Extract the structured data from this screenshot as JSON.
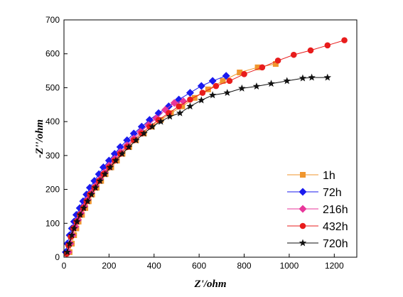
{
  "chart_data": {
    "type": "scatter",
    "title": "",
    "xlabel": "Z'/ohm",
    "ylabel": "-Z''/ohm",
    "xlim": [
      0,
      1300
    ],
    "ylim": [
      0,
      700
    ],
    "xticks": [
      "0",
      "200",
      "400",
      "600",
      "800",
      "1000",
      "1200"
    ],
    "yticks": [
      "0",
      "100",
      "200",
      "300",
      "400",
      "500",
      "600",
      "700"
    ],
    "grid": false,
    "legend": "lower-right",
    "series": [
      {
        "name": "1h",
        "color": "#f0962e",
        "marker": "square",
        "points": [
          [
            25,
            15
          ],
          [
            35,
            40
          ],
          [
            45,
            65
          ],
          [
            55,
            85
          ],
          [
            65,
            105
          ],
          [
            80,
            125
          ],
          [
            95,
            145
          ],
          [
            110,
            165
          ],
          [
            125,
            185
          ],
          [
            145,
            205
          ],
          [
            165,
            225
          ],
          [
            185,
            245
          ],
          [
            210,
            265
          ],
          [
            235,
            285
          ],
          [
            260,
            305
          ],
          [
            290,
            325
          ],
          [
            320,
            345
          ],
          [
            355,
            365
          ],
          [
            390,
            385
          ],
          [
            430,
            405
          ],
          [
            475,
            425
          ],
          [
            525,
            445
          ],
          [
            580,
            470
          ],
          [
            640,
            495
          ],
          [
            705,
            520
          ],
          [
            780,
            545
          ],
          [
            860,
            560
          ],
          [
            940,
            570
          ]
        ]
      },
      {
        "name": "72h",
        "color": "#1a1aee",
        "marker": "diamond",
        "points": [
          [
            8,
            15
          ],
          [
            15,
            40
          ],
          [
            25,
            65
          ],
          [
            35,
            85
          ],
          [
            45,
            105
          ],
          [
            55,
            125
          ],
          [
            70,
            145
          ],
          [
            85,
            165
          ],
          [
            100,
            185
          ],
          [
            115,
            205
          ],
          [
            135,
            225
          ],
          [
            155,
            245
          ],
          [
            175,
            265
          ],
          [
            200,
            285
          ],
          [
            225,
            305
          ],
          [
            250,
            325
          ],
          [
            280,
            345
          ],
          [
            310,
            365
          ],
          [
            345,
            385
          ],
          [
            380,
            405
          ],
          [
            420,
            425
          ],
          [
            465,
            445
          ],
          [
            510,
            465
          ],
          [
            560,
            485
          ],
          [
            610,
            505
          ],
          [
            660,
            520
          ],
          [
            720,
            535
          ]
        ]
      },
      {
        "name": "216h",
        "color": "#e8369a",
        "marker": "diamond",
        "points": [
          [
            20,
            15
          ],
          [
            28,
            40
          ],
          [
            38,
            65
          ],
          [
            50,
            90
          ],
          [
            62,
            110
          ],
          [
            75,
            130
          ],
          [
            90,
            150
          ],
          [
            105,
            170
          ],
          [
            120,
            190
          ],
          [
            140,
            210
          ],
          [
            160,
            230
          ],
          [
            180,
            250
          ],
          [
            200,
            270
          ],
          [
            225,
            290
          ],
          [
            250,
            310
          ],
          [
            280,
            330
          ],
          [
            310,
            350
          ],
          [
            340,
            370
          ],
          [
            375,
            390
          ],
          [
            410,
            410
          ],
          [
            450,
            435
          ],
          [
            490,
            455
          ],
          [
            530,
            460
          ]
        ]
      },
      {
        "name": "432h",
        "color": "#e81c1c",
        "marker": "circle",
        "points": [
          [
            12,
            10
          ],
          [
            20,
            35
          ],
          [
            30,
            60
          ],
          [
            42,
            85
          ],
          [
            55,
            105
          ],
          [
            70,
            125
          ],
          [
            85,
            145
          ],
          [
            100,
            165
          ],
          [
            115,
            185
          ],
          [
            135,
            205
          ],
          [
            155,
            225
          ],
          [
            175,
            245
          ],
          [
            200,
            265
          ],
          [
            225,
            285
          ],
          [
            250,
            305
          ],
          [
            280,
            325
          ],
          [
            310,
            345
          ],
          [
            345,
            365
          ],
          [
            380,
            385
          ],
          [
            420,
            405
          ],
          [
            465,
            425
          ],
          [
            510,
            445
          ],
          [
            560,
            465
          ],
          [
            615,
            485
          ],
          [
            675,
            505
          ],
          [
            735,
            520
          ],
          [
            800,
            540
          ],
          [
            880,
            560
          ],
          [
            950,
            580
          ],
          [
            1020,
            597
          ],
          [
            1095,
            610
          ],
          [
            1170,
            625
          ],
          [
            1245,
            640
          ]
        ]
      },
      {
        "name": "720h",
        "color": "#111111",
        "marker": "star",
        "points": [
          [
            15,
            15
          ],
          [
            25,
            40
          ],
          [
            35,
            65
          ],
          [
            45,
            85
          ],
          [
            58,
            105
          ],
          [
            72,
            125
          ],
          [
            88,
            145
          ],
          [
            105,
            165
          ],
          [
            122,
            185
          ],
          [
            140,
            205
          ],
          [
            160,
            225
          ],
          [
            182,
            245
          ],
          [
            205,
            265
          ],
          [
            230,
            285
          ],
          [
            258,
            305
          ],
          [
            288,
            325
          ],
          [
            320,
            345
          ],
          [
            355,
            365
          ],
          [
            392,
            385
          ],
          [
            430,
            400
          ],
          [
            470,
            415
          ],
          [
            515,
            425
          ],
          [
            560,
            445
          ],
          [
            610,
            463
          ],
          [
            660,
            478
          ],
          [
            725,
            485
          ],
          [
            790,
            498
          ],
          [
            855,
            504
          ],
          [
            920,
            512
          ],
          [
            990,
            520
          ],
          [
            1060,
            528
          ],
          [
            1100,
            530
          ],
          [
            1170,
            530
          ]
        ]
      }
    ]
  }
}
